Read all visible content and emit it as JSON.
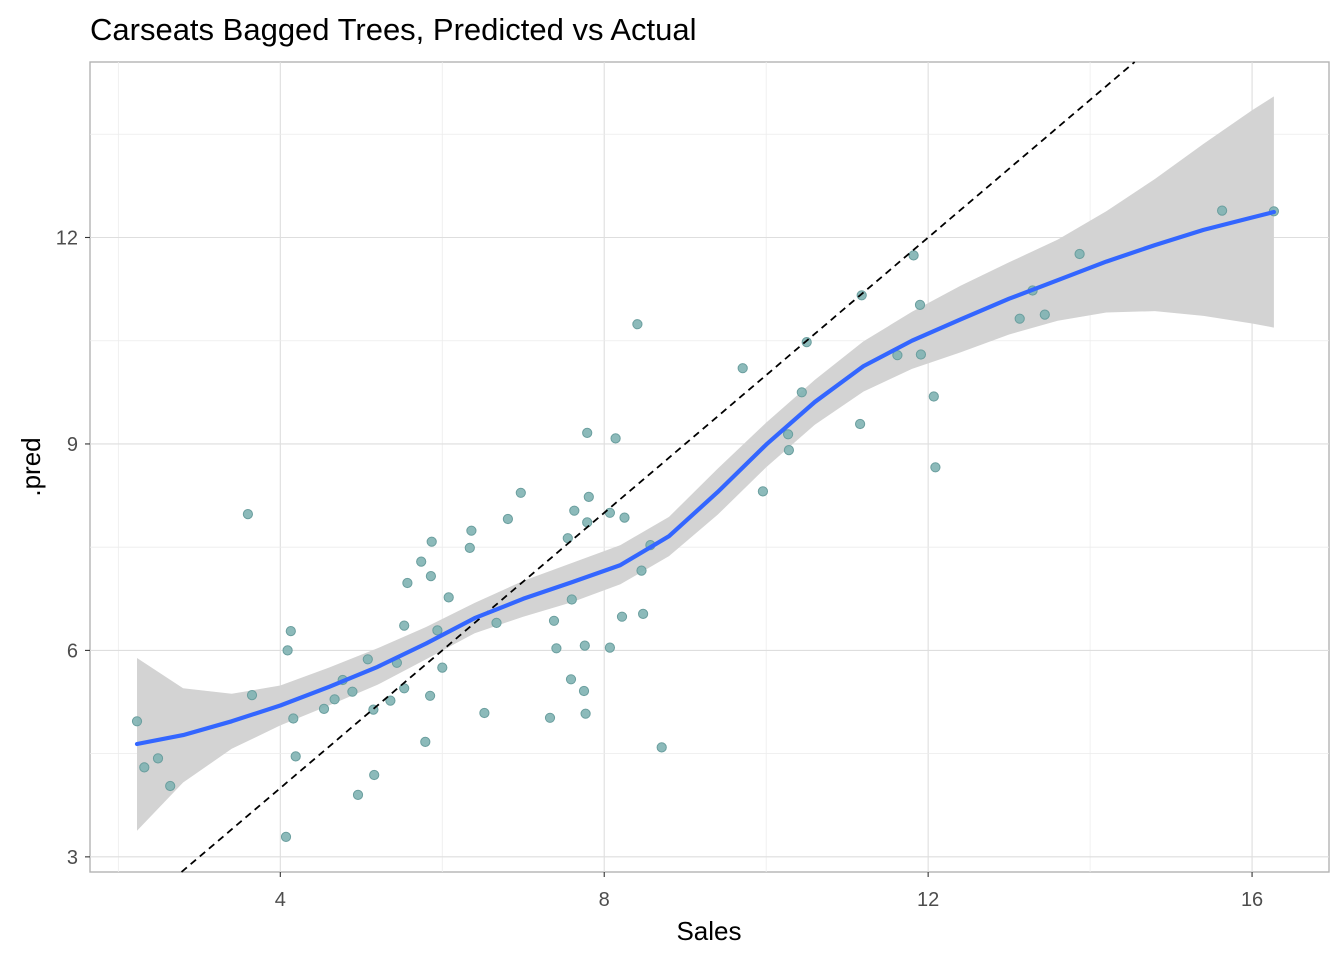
{
  "chart_data": {
    "type": "scatter",
    "title": "Carseats Bagged Trees, Predicted vs Actual",
    "xlabel": "Sales",
    "ylabel": ".pred",
    "xlim": [
      1.65,
      16.95
    ],
    "ylim": [
      2.78,
      14.55
    ],
    "x_ticks": [
      4,
      8,
      12,
      16
    ],
    "y_ticks": [
      3,
      6,
      9,
      12
    ],
    "grid": true,
    "point_color": "#7fb3b3",
    "point_stroke": "#6a9e9e",
    "smooth_color": "#3366ff",
    "ribbon_color": "#d3d3d3",
    "identity_line": {
      "slope": 1,
      "intercept": 0,
      "style": "dashed",
      "color": "#000000"
    },
    "points": [
      [
        2.23,
        4.97
      ],
      [
        2.32,
        4.3
      ],
      [
        2.49,
        4.43
      ],
      [
        2.64,
        4.03
      ],
      [
        3.6,
        7.98
      ],
      [
        3.65,
        5.35
      ],
      [
        4.07,
        3.29
      ],
      [
        4.09,
        6.0
      ],
      [
        4.13,
        6.28
      ],
      [
        4.16,
        5.01
      ],
      [
        4.19,
        4.46
      ],
      [
        4.54,
        5.15
      ],
      [
        4.67,
        5.29
      ],
      [
        4.77,
        5.57
      ],
      [
        4.89,
        5.4
      ],
      [
        4.96,
        3.9
      ],
      [
        5.08,
        5.87
      ],
      [
        5.15,
        5.14
      ],
      [
        5.16,
        4.19
      ],
      [
        5.36,
        5.27
      ],
      [
        5.44,
        5.82
      ],
      [
        5.53,
        6.36
      ],
      [
        5.53,
        5.45
      ],
      [
        5.57,
        6.98
      ],
      [
        5.74,
        7.29
      ],
      [
        5.79,
        4.67
      ],
      [
        5.85,
        5.34
      ],
      [
        5.86,
        7.08
      ],
      [
        5.87,
        7.58
      ],
      [
        5.94,
        6.29
      ],
      [
        6.0,
        5.75
      ],
      [
        6.08,
        6.77
      ],
      [
        6.34,
        7.49
      ],
      [
        6.36,
        7.74
      ],
      [
        6.52,
        5.09
      ],
      [
        6.67,
        6.4
      ],
      [
        6.81,
        7.91
      ],
      [
        6.97,
        8.29
      ],
      [
        7.33,
        5.02
      ],
      [
        7.38,
        6.43
      ],
      [
        7.41,
        6.03
      ],
      [
        7.55,
        7.63
      ],
      [
        7.59,
        5.58
      ],
      [
        7.6,
        6.74
      ],
      [
        7.63,
        8.03
      ],
      [
        7.75,
        5.41
      ],
      [
        7.76,
        6.07
      ],
      [
        7.77,
        5.08
      ],
      [
        7.79,
        7.86
      ],
      [
        7.79,
        9.16
      ],
      [
        7.81,
        8.23
      ],
      [
        8.07,
        8.0
      ],
      [
        8.07,
        6.04
      ],
      [
        8.14,
        9.08
      ],
      [
        8.22,
        6.49
      ],
      [
        8.25,
        7.93
      ],
      [
        8.41,
        10.74
      ],
      [
        8.46,
        7.16
      ],
      [
        8.48,
        6.53
      ],
      [
        8.57,
        7.53
      ],
      [
        8.71,
        4.59
      ],
      [
        9.71,
        10.1
      ],
      [
        9.96,
        8.31
      ],
      [
        10.27,
        9.14
      ],
      [
        10.28,
        8.91
      ],
      [
        10.44,
        9.75
      ],
      [
        10.5,
        10.48
      ],
      [
        11.16,
        9.29
      ],
      [
        11.18,
        11.16
      ],
      [
        11.62,
        10.29
      ],
      [
        11.82,
        11.74
      ],
      [
        11.9,
        11.02
      ],
      [
        11.91,
        10.3
      ],
      [
        12.07,
        9.69
      ],
      [
        12.09,
        8.66
      ],
      [
        13.13,
        10.82
      ],
      [
        13.29,
        11.23
      ],
      [
        13.44,
        10.88
      ],
      [
        13.87,
        11.76
      ],
      [
        15.63,
        12.39
      ],
      [
        16.27,
        12.38
      ]
    ],
    "smooth": {
      "x": [
        2.23,
        2.8,
        3.4,
        4.0,
        4.6,
        5.2,
        5.8,
        6.4,
        7.0,
        7.6,
        8.2,
        8.8,
        9.4,
        10.0,
        10.6,
        11.2,
        11.8,
        12.4,
        13.0,
        13.6,
        14.2,
        14.8,
        15.4,
        16.0,
        16.27
      ],
      "y": [
        4.64,
        4.77,
        4.97,
        5.2,
        5.47,
        5.76,
        6.1,
        6.47,
        6.75,
        6.99,
        7.24,
        7.66,
        8.3,
        8.99,
        9.61,
        10.13,
        10.5,
        10.81,
        11.11,
        11.38,
        11.65,
        11.89,
        12.11,
        12.29,
        12.37
      ],
      "lower": [
        3.38,
        4.08,
        4.57,
        4.91,
        5.2,
        5.5,
        5.87,
        6.25,
        6.49,
        6.7,
        6.96,
        7.37,
        7.97,
        8.66,
        9.28,
        9.76,
        10.09,
        10.33,
        10.59,
        10.79,
        10.91,
        10.93,
        10.86,
        10.75,
        10.69
      ],
      "upper": [
        5.89,
        5.45,
        5.37,
        5.49,
        5.75,
        6.03,
        6.34,
        6.69,
        7.01,
        7.27,
        7.53,
        7.94,
        8.64,
        9.31,
        9.93,
        10.49,
        10.92,
        11.3,
        11.64,
        11.97,
        12.38,
        12.85,
        13.36,
        13.85,
        14.05
      ]
    }
  }
}
